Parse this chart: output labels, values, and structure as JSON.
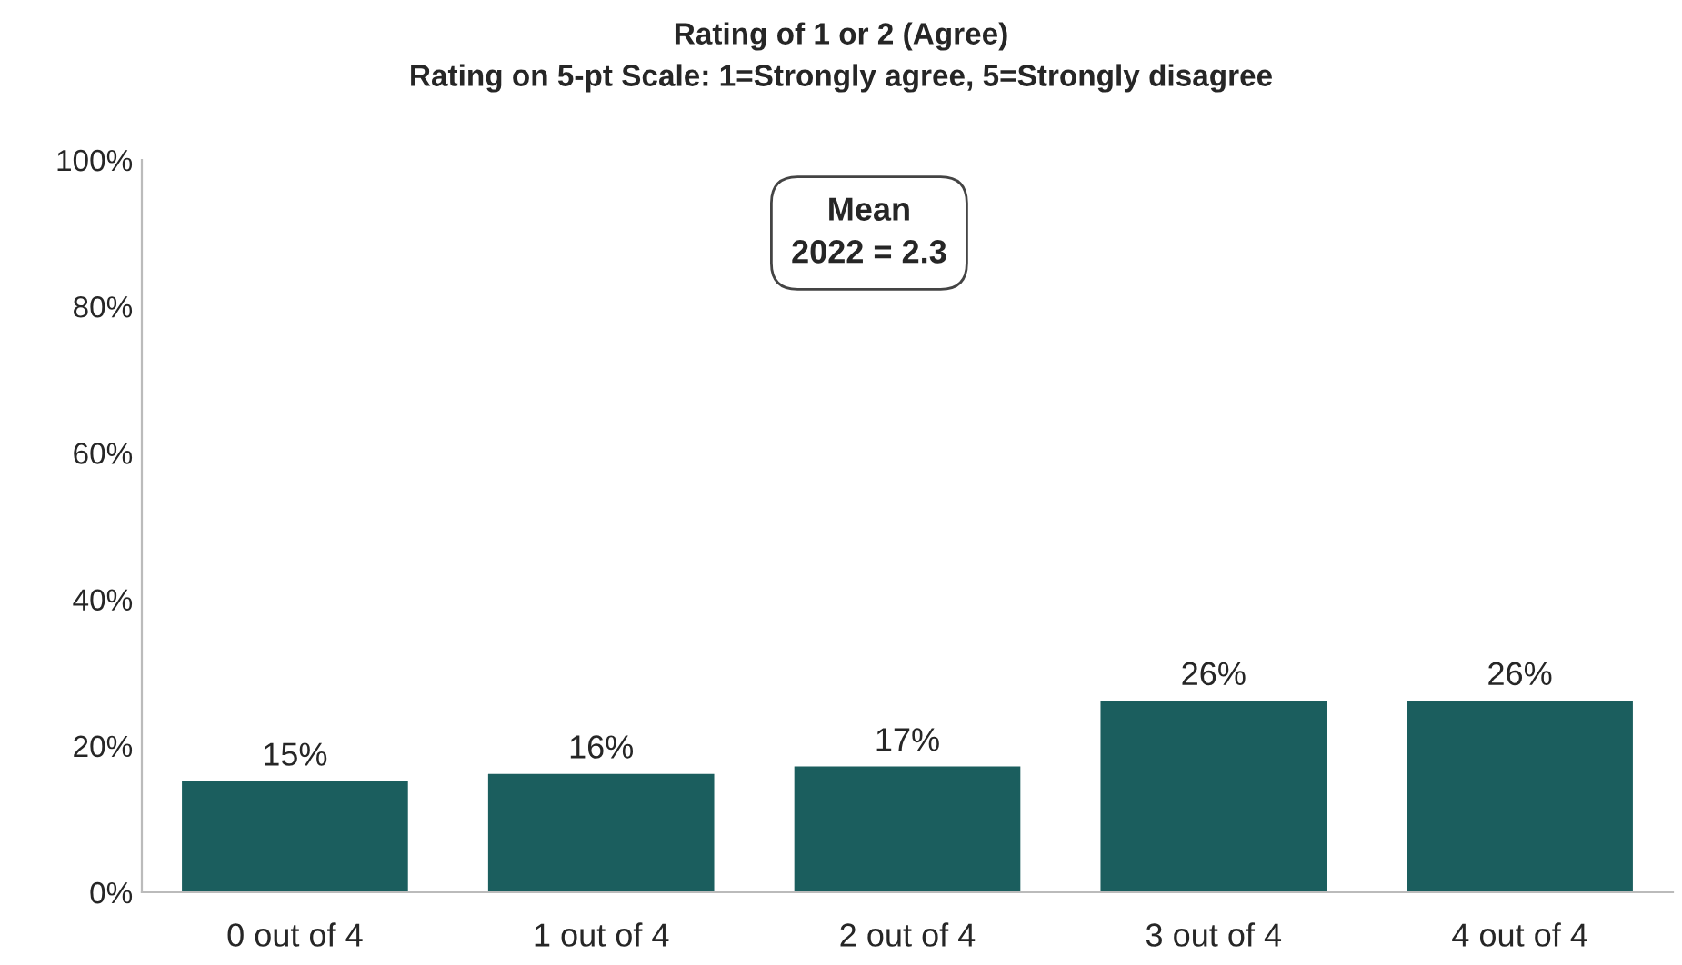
{
  "chart_data": {
    "type": "bar",
    "title": "Rating of 1 or 2 (Agree)",
    "subtitle": "Rating on 5-pt Scale: 1=Strongly agree, 5=Strongly disagree",
    "categories": [
      "0 out of 4",
      "1 out of 4",
      "2 out of 4",
      "3 out of 4",
      "4 out of 4"
    ],
    "values": [
      15,
      16,
      17,
      26,
      26
    ],
    "color": "#1b5e5e",
    "value_labels": [
      "15%",
      "16%",
      "17%",
      "26%",
      "26%"
    ],
    "ylim": [
      0,
      100
    ],
    "yticks": [
      {
        "value": 0,
        "label": "0%"
      },
      {
        "value": 20,
        "label": "20%"
      },
      {
        "value": 40,
        "label": "40%"
      },
      {
        "value": 60,
        "label": "60%"
      },
      {
        "value": 80,
        "label": "80%"
      },
      {
        "value": 100,
        "label": "100%"
      }
    ],
    "annotations": [
      "Mean\n2022 = 2.3"
    ],
    "grid": false
  }
}
